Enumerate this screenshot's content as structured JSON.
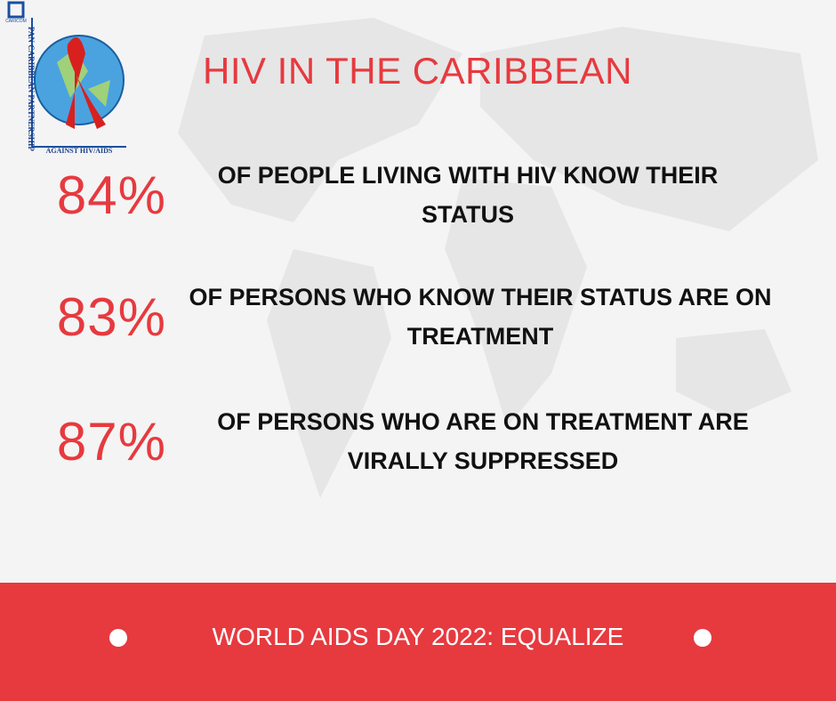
{
  "logo": {
    "badge": "CARICOM",
    "vertical_text": "PAN CARIBBEAN PARTNERSHIP",
    "bottom_text": "AGAINST HIV/AIDS"
  },
  "title": "HIV IN THE CARIBBEAN",
  "stats": [
    {
      "value": "84%",
      "text": "OF PEOPLE LIVING WITH HIV KNOW THEIR STATUS"
    },
    {
      "value": "83%",
      "text": "OF PERSONS WHO KNOW THEIR STATUS ARE ON TREATMENT"
    },
    {
      "value": "87%",
      "text": "OF PERSONS WHO ARE ON TREATMENT ARE VIRALLY SUPPRESSED"
    }
  ],
  "footer": "WORLD AIDS DAY 2022: EQUALIZE"
}
